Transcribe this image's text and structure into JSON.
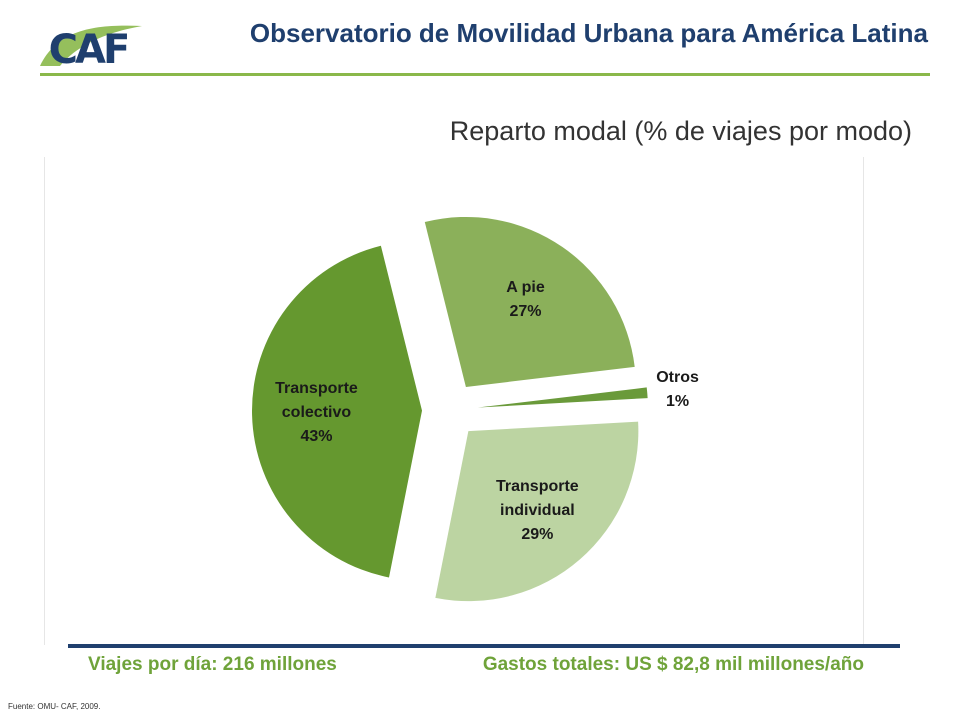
{
  "header": {
    "logo_text": "CAF",
    "title": "Observatorio de Movilidad Urbana para América Latina"
  },
  "chart_data": {
    "type": "pie",
    "title": "Reparto modal (% de viajes por modo)",
    "slices": [
      {
        "label_lines": [
          "A pie"
        ],
        "value": 27,
        "value_label": "27%",
        "color": "#8bb05a"
      },
      {
        "label_lines": [
          "Otros"
        ],
        "value": 1,
        "value_label": "1%",
        "color": "#6a9a3a"
      },
      {
        "label_lines": [
          "Transporte",
          "individual"
        ],
        "value": 29,
        "value_label": "29%",
        "color": "#bcd4a2"
      },
      {
        "label_lines": [
          "Transporte",
          "colectivo"
        ],
        "value": 43,
        "value_label": "43%",
        "color": "#65982f"
      }
    ],
    "exploded": true
  },
  "footer": {
    "trips_per_day": "Viajes por día: 216 millones",
    "total_spending": "Gastos  totales: US $ 82,8 mil millones/año",
    "source": "Fuente: OMU- CAF, 2009."
  },
  "colors": {
    "brand_blue": "#1f3f6e",
    "brand_green": "#8ab84a",
    "stat_green": "#6fa33a"
  }
}
